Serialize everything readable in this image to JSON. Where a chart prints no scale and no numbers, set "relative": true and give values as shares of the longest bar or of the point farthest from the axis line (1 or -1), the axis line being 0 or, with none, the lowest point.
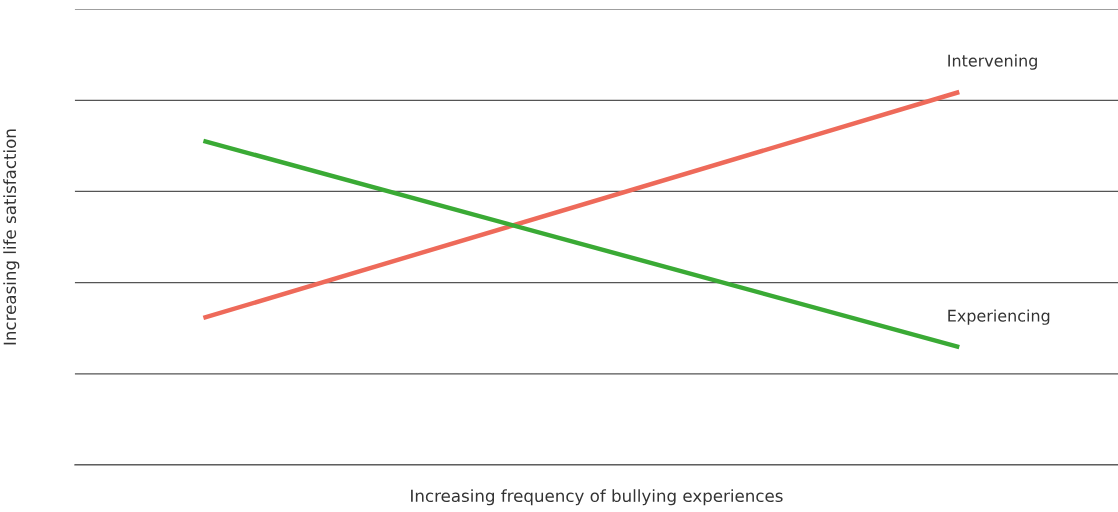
{
  "chart_data": {
    "type": "line",
    "relative": true,
    "xlabel": "Increasing frequency of bullying experiences",
    "ylabel": "Increasing life satisfaction",
    "categories": [
      null,
      null
    ],
    "grid": "y",
    "legend": false,
    "series": [
      {
        "name": "Intervening",
        "color": "#ee6a5a",
        "values": [
          0.394,
          1
        ]
      },
      {
        "name": "Experiencing",
        "color": "#3aaa35",
        "values": [
          0.869,
          0.316
        ]
      }
    ]
  }
}
